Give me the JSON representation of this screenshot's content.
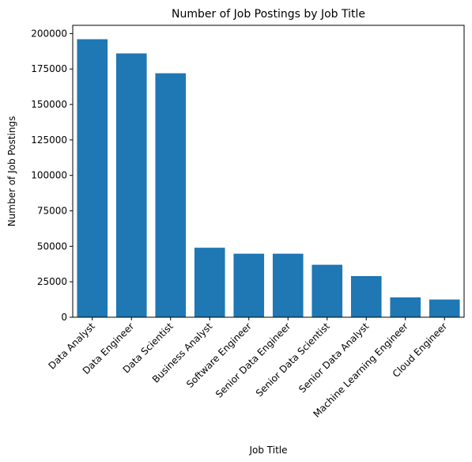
{
  "chart_data": {
    "type": "bar",
    "title": "Number of Job Postings by Job Title",
    "xlabel": "Job Title",
    "ylabel": "Number of Job Postings",
    "categories": [
      "Data Analyst",
      "Data Engineer",
      "Data Scientist",
      "Business Analyst",
      "Software Engineer",
      "Senior Data Engineer",
      "Senior Data Scientist",
      "Senior Data Analyst",
      "Machine Learning Engineer",
      "Cloud Engineer"
    ],
    "values": [
      196000,
      186000,
      172000,
      49000,
      44800,
      44800,
      37000,
      29000,
      14000,
      12500
    ],
    "ylim": [
      0,
      205800
    ],
    "yticks": [
      0,
      25000,
      50000,
      75000,
      100000,
      125000,
      150000,
      175000,
      200000
    ],
    "bar_color": "#1f77b4",
    "grid": false
  }
}
